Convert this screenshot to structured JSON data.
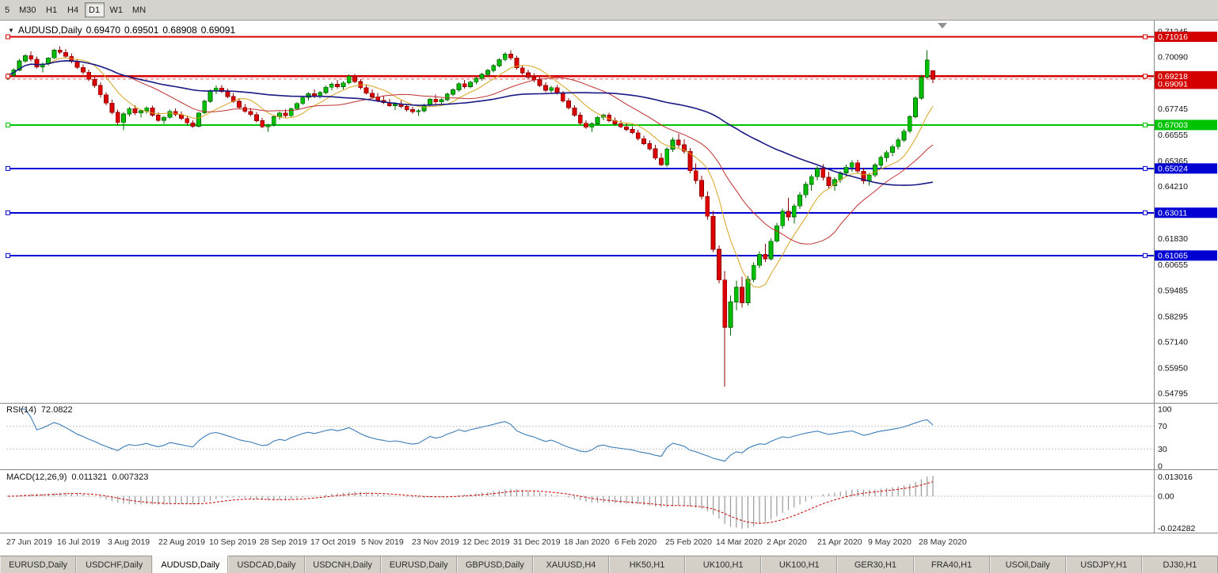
{
  "toolbar": {
    "buttons": [
      {
        "label": "5"
      },
      {
        "label": "M30"
      },
      {
        "label": "H1"
      },
      {
        "label": "H4"
      },
      {
        "label": "D1"
      },
      {
        "label": "W1"
      },
      {
        "label": "MN"
      }
    ],
    "active": "D1"
  },
  "chart": {
    "symbol": "AUDUSD,Daily",
    "ohlc": {
      "open": "0.69470",
      "high": "0.69501",
      "low": "0.68908",
      "close": "0.69091"
    },
    "price_range": {
      "max": 0.715,
      "min": 0.544
    },
    "price_axis_labels": [
      "0.71245",
      "0.70090",
      "0.68935",
      "0.67745",
      "0.66555",
      "0.65365",
      "0.64210",
      "0.63020",
      "0.61830",
      "0.60655",
      "0.59485",
      "0.58295",
      "0.57140",
      "0.55950",
      "0.54795"
    ],
    "hlines": [
      {
        "price": 0.71016,
        "label": "0.71016",
        "color": "#d40000",
        "width": 2
      },
      {
        "price": 0.69218,
        "label": "0.69218",
        "color": "#d40000",
        "width": 2.5
      },
      {
        "price": 0.67003,
        "label": "0.67003",
        "color": "#00c400",
        "width": 2
      },
      {
        "price": 0.65024,
        "label": "0.65024",
        "color": "#0000d2",
        "width": 2
      },
      {
        "price": 0.63011,
        "label": "0.63011",
        "color": "#0000d2",
        "width": 2
      },
      {
        "price": 0.61065,
        "label": "0.61065",
        "color": "#0000d2",
        "width": 2
      }
    ],
    "current_price": {
      "value": 0.69091,
      "label": "0.69091",
      "color": "#d40000"
    },
    "candle_colors": {
      "up_fill": "#00be00",
      "up_border": "#006400",
      "down_fill": "#dc0000",
      "down_border": "#8b0000"
    },
    "moving_averages": [
      {
        "period": 8,
        "color": "#d8a520",
        "width": 1
      },
      {
        "period": 20,
        "color": "#c03030",
        "width": 1
      },
      {
        "period": 55,
        "color": "#1a1a86",
        "width": 1.6
      }
    ],
    "dates": [
      "27 Jun 2019",
      "16 Jul 2019",
      "3 Aug 2019",
      "22 Aug 2019",
      "10 Sep 2019",
      "28 Sep 2019",
      "17 Oct 2019",
      "5 Nov 2019",
      "23 Nov 2019",
      "12 Dec 2019",
      "31 Dec 2019",
      "18 Jan 2020",
      "6 Feb 2020",
      "25 Feb 2020",
      "14 Mar 2020",
      "2 Apr 2020",
      "21 Apr 2020",
      "9 May 2020",
      "28 May 2020"
    ],
    "candles": [
      [
        0.692,
        0.6935,
        0.6905,
        0.6927
      ],
      [
        0.6927,
        0.6958,
        0.692,
        0.695
      ],
      [
        0.695,
        0.7,
        0.6945,
        0.6992
      ],
      [
        0.6992,
        0.7022,
        0.6985,
        0.7015
      ],
      [
        0.7015,
        0.7035,
        0.699,
        0.7
      ],
      [
        0.7,
        0.7012,
        0.6958,
        0.6965
      ],
      [
        0.6965,
        0.6985,
        0.694,
        0.6978
      ],
      [
        0.6978,
        0.701,
        0.697,
        0.7005
      ],
      [
        0.7005,
        0.7048,
        0.7,
        0.704
      ],
      [
        0.704,
        0.7058,
        0.7022,
        0.703
      ],
      [
        0.703,
        0.7045,
        0.7005,
        0.7012
      ],
      [
        0.7012,
        0.7025,
        0.698,
        0.699
      ],
      [
        0.699,
        0.7,
        0.6955,
        0.6962
      ],
      [
        0.6962,
        0.6975,
        0.693,
        0.694
      ],
      [
        0.694,
        0.6952,
        0.69,
        0.6908
      ],
      [
        0.6908,
        0.692,
        0.687,
        0.688
      ],
      [
        0.688,
        0.6895,
        0.6825,
        0.6838
      ],
      [
        0.6838,
        0.685,
        0.679,
        0.68
      ],
      [
        0.68,
        0.6815,
        0.6748,
        0.6758
      ],
      [
        0.6758,
        0.677,
        0.67,
        0.6712
      ],
      [
        0.6712,
        0.676,
        0.6677,
        0.675
      ],
      [
        0.675,
        0.6782,
        0.674,
        0.6775
      ],
      [
        0.6775,
        0.679,
        0.6745,
        0.6755
      ],
      [
        0.6755,
        0.677,
        0.6735,
        0.6765
      ],
      [
        0.6765,
        0.6785,
        0.6752,
        0.6778
      ],
      [
        0.6778,
        0.6788,
        0.6738,
        0.6745
      ],
      [
        0.6745,
        0.6758,
        0.6715,
        0.6722
      ],
      [
        0.6722,
        0.6742,
        0.6705,
        0.6735
      ],
      [
        0.6735,
        0.677,
        0.6728,
        0.6762
      ],
      [
        0.6762,
        0.6775,
        0.674,
        0.6748
      ],
      [
        0.6748,
        0.6762,
        0.6722,
        0.673
      ],
      [
        0.673,
        0.674,
        0.67,
        0.671
      ],
      [
        0.671,
        0.6722,
        0.6688,
        0.6695
      ],
      [
        0.6695,
        0.676,
        0.669,
        0.6755
      ],
      [
        0.6755,
        0.6815,
        0.675,
        0.6808
      ],
      [
        0.6808,
        0.6862,
        0.68,
        0.6855
      ],
      [
        0.6855,
        0.688,
        0.684,
        0.6868
      ],
      [
        0.6868,
        0.6882,
        0.6845,
        0.6852
      ],
      [
        0.6852,
        0.6865,
        0.6822,
        0.683
      ],
      [
        0.683,
        0.6845,
        0.68,
        0.6808
      ],
      [
        0.6808,
        0.6822,
        0.6772,
        0.678
      ],
      [
        0.678,
        0.6795,
        0.6755,
        0.6762
      ],
      [
        0.6762,
        0.6778,
        0.674,
        0.6748
      ],
      [
        0.6748,
        0.676,
        0.6712,
        0.672
      ],
      [
        0.672,
        0.6732,
        0.6685,
        0.6692
      ],
      [
        0.6692,
        0.6705,
        0.667,
        0.67
      ],
      [
        0.67,
        0.6745,
        0.6692,
        0.6738
      ],
      [
        0.6738,
        0.6762,
        0.6725,
        0.6755
      ],
      [
        0.6755,
        0.6772,
        0.6735,
        0.6742
      ],
      [
        0.6742,
        0.678,
        0.6738,
        0.6775
      ],
      [
        0.6775,
        0.6805,
        0.6768,
        0.6798
      ],
      [
        0.6798,
        0.6832,
        0.6792,
        0.6825
      ],
      [
        0.6825,
        0.685,
        0.6812,
        0.6842
      ],
      [
        0.6842,
        0.6862,
        0.6822,
        0.683
      ],
      [
        0.683,
        0.6855,
        0.682,
        0.6848
      ],
      [
        0.6848,
        0.688,
        0.684,
        0.6872
      ],
      [
        0.6872,
        0.6895,
        0.6858,
        0.6885
      ],
      [
        0.6885,
        0.6905,
        0.6865,
        0.6875
      ],
      [
        0.6875,
        0.69,
        0.6862,
        0.6892
      ],
      [
        0.6892,
        0.693,
        0.6885,
        0.6922
      ],
      [
        0.6922,
        0.6932,
        0.689,
        0.6898
      ],
      [
        0.6898,
        0.6908,
        0.6862,
        0.687
      ],
      [
        0.687,
        0.6885,
        0.6838,
        0.6845
      ],
      [
        0.6845,
        0.6862,
        0.682,
        0.6828
      ],
      [
        0.6828,
        0.6845,
        0.6805,
        0.6812
      ],
      [
        0.6812,
        0.6832,
        0.6795,
        0.6802
      ],
      [
        0.6802,
        0.6818,
        0.6782,
        0.6788
      ],
      [
        0.6788,
        0.6805,
        0.6768,
        0.6795
      ],
      [
        0.6795,
        0.6812,
        0.6778,
        0.6785
      ],
      [
        0.6785,
        0.6795,
        0.6762,
        0.677
      ],
      [
        0.677,
        0.6782,
        0.6752,
        0.676
      ],
      [
        0.676,
        0.6772,
        0.6742,
        0.6765
      ],
      [
        0.6765,
        0.6798,
        0.6758,
        0.679
      ],
      [
        0.679,
        0.6825,
        0.6782,
        0.6818
      ],
      [
        0.6818,
        0.6838,
        0.6795,
        0.6805
      ],
      [
        0.6805,
        0.6822,
        0.6788,
        0.6815
      ],
      [
        0.6815,
        0.6848,
        0.6808,
        0.684
      ],
      [
        0.684,
        0.6868,
        0.6832,
        0.686
      ],
      [
        0.686,
        0.6895,
        0.6852,
        0.6888
      ],
      [
        0.6888,
        0.6905,
        0.6865,
        0.6875
      ],
      [
        0.6875,
        0.6902,
        0.6868,
        0.6895
      ],
      [
        0.6895,
        0.692,
        0.6885,
        0.6912
      ],
      [
        0.6912,
        0.6938,
        0.6902,
        0.693
      ],
      [
        0.693,
        0.6955,
        0.692,
        0.6948
      ],
      [
        0.6948,
        0.6978,
        0.694,
        0.697
      ],
      [
        0.697,
        0.7005,
        0.6962,
        0.6998
      ],
      [
        0.6998,
        0.7032,
        0.699,
        0.7022
      ],
      [
        0.7022,
        0.704,
        0.6995,
        0.7005
      ],
      [
        0.7005,
        0.7015,
        0.6952,
        0.696
      ],
      [
        0.696,
        0.6972,
        0.6928,
        0.6938
      ],
      [
        0.6938,
        0.6952,
        0.6908,
        0.6918
      ],
      [
        0.6918,
        0.6935,
        0.6895,
        0.6905
      ],
      [
        0.6905,
        0.692,
        0.6872,
        0.688
      ],
      [
        0.688,
        0.6895,
        0.685,
        0.6858
      ],
      [
        0.6858,
        0.6878,
        0.6842,
        0.687
      ],
      [
        0.687,
        0.6882,
        0.6838,
        0.6845
      ],
      [
        0.6845,
        0.6855,
        0.6802,
        0.681
      ],
      [
        0.681,
        0.6822,
        0.677,
        0.6778
      ],
      [
        0.6778,
        0.679,
        0.6738,
        0.6745
      ],
      [
        0.6745,
        0.6758,
        0.67,
        0.6708
      ],
      [
        0.6708,
        0.6722,
        0.6682,
        0.669
      ],
      [
        0.669,
        0.6712,
        0.667,
        0.6705
      ],
      [
        0.6705,
        0.6742,
        0.6698,
        0.6735
      ],
      [
        0.6735,
        0.6752,
        0.6722,
        0.6745
      ],
      [
        0.6745,
        0.6755,
        0.6712,
        0.672
      ],
      [
        0.672,
        0.6735,
        0.6698,
        0.6705
      ],
      [
        0.6705,
        0.6722,
        0.6685,
        0.6692
      ],
      [
        0.6692,
        0.6708,
        0.6672,
        0.668
      ],
      [
        0.668,
        0.6695,
        0.6658,
        0.6665
      ],
      [
        0.6665,
        0.6678,
        0.663,
        0.6638
      ],
      [
        0.6638,
        0.6652,
        0.6608,
        0.6615
      ],
      [
        0.6615,
        0.663,
        0.6585,
        0.6592
      ],
      [
        0.6592,
        0.661,
        0.6542,
        0.655
      ],
      [
        0.655,
        0.6572,
        0.6512,
        0.652
      ],
      [
        0.652,
        0.66,
        0.651,
        0.659
      ],
      [
        0.659,
        0.6645,
        0.6578,
        0.6632
      ],
      [
        0.6632,
        0.666,
        0.6598,
        0.661
      ],
      [
        0.661,
        0.6635,
        0.657,
        0.658
      ],
      [
        0.658,
        0.6595,
        0.648,
        0.6492
      ],
      [
        0.6492,
        0.6525,
        0.6432,
        0.6448
      ],
      [
        0.6448,
        0.647,
        0.6362,
        0.6375
      ],
      [
        0.6375,
        0.6398,
        0.627,
        0.6285
      ],
      [
        0.6285,
        0.631,
        0.6122,
        0.6135
      ],
      [
        0.6135,
        0.6152,
        0.598,
        0.5995
      ],
      [
        0.5995,
        0.6035,
        0.551,
        0.578
      ],
      [
        0.578,
        0.5925,
        0.5742,
        0.5895
      ],
      [
        0.5895,
        0.5992,
        0.5858,
        0.5962
      ],
      [
        0.5962,
        0.601,
        0.587,
        0.5892
      ],
      [
        0.5892,
        0.6015,
        0.588,
        0.5998
      ],
      [
        0.5998,
        0.6075,
        0.5985,
        0.6062
      ],
      [
        0.6062,
        0.6125,
        0.6048,
        0.6112
      ],
      [
        0.6112,
        0.616,
        0.6078,
        0.6092
      ],
      [
        0.6092,
        0.6185,
        0.6085,
        0.6172
      ],
      [
        0.6172,
        0.6255,
        0.6165,
        0.6242
      ],
      [
        0.6242,
        0.632,
        0.6228,
        0.6308
      ],
      [
        0.6308,
        0.6368,
        0.6265,
        0.6282
      ],
      [
        0.6282,
        0.6342,
        0.6252,
        0.6332
      ],
      [
        0.6332,
        0.6395,
        0.6318,
        0.6382
      ],
      [
        0.6382,
        0.6442,
        0.6368,
        0.643
      ],
      [
        0.643,
        0.6475,
        0.6402,
        0.6465
      ],
      [
        0.6465,
        0.6512,
        0.6448,
        0.6502
      ],
      [
        0.6502,
        0.6522,
        0.6448,
        0.6462
      ],
      [
        0.6462,
        0.6488,
        0.6412,
        0.6425
      ],
      [
        0.6425,
        0.6462,
        0.6402,
        0.6452
      ],
      [
        0.6452,
        0.6492,
        0.6438,
        0.6482
      ],
      [
        0.6482,
        0.652,
        0.6465,
        0.6508
      ],
      [
        0.6508,
        0.654,
        0.6488,
        0.6528
      ],
      [
        0.6528,
        0.6542,
        0.6478,
        0.649
      ],
      [
        0.649,
        0.6505,
        0.6432,
        0.6445
      ],
      [
        0.6445,
        0.6482,
        0.6425,
        0.6472
      ],
      [
        0.6472,
        0.6528,
        0.6462,
        0.6518
      ],
      [
        0.6518,
        0.6562,
        0.6505,
        0.6552
      ],
      [
        0.6552,
        0.6585,
        0.6532,
        0.6575
      ],
      [
        0.6575,
        0.6612,
        0.6558,
        0.6602
      ],
      [
        0.6602,
        0.6642,
        0.6588,
        0.6632
      ],
      [
        0.6632,
        0.6682,
        0.6622,
        0.6672
      ],
      [
        0.6672,
        0.6745,
        0.6662,
        0.6738
      ],
      [
        0.6738,
        0.6832,
        0.673,
        0.6822
      ],
      [
        0.6822,
        0.6928,
        0.6815,
        0.6918
      ],
      [
        0.6918,
        0.704,
        0.691,
        0.6995
      ],
      [
        0.6947,
        0.69501,
        0.68908,
        0.69091
      ]
    ]
  },
  "rsi": {
    "title": "RSI(14)",
    "value": "72.0822",
    "levels": [
      "100",
      "70",
      "30",
      "0"
    ],
    "line_color": "#3b7cb8"
  },
  "macd": {
    "title": "MACD(12,26,9)",
    "value_main": "0.011321",
    "value_signal": "0.007323",
    "labels": {
      "max": "0.013016",
      "zero": "0.00",
      "min": "-0.024282"
    },
    "histogram_color": "#9a9a9a",
    "signal_color": "#cc0000"
  },
  "tabs": {
    "active_index": 2,
    "items": [
      {
        "label": "EURUSD,Daily"
      },
      {
        "label": "USDCHF,Daily"
      },
      {
        "label": "AUDUSD,Daily"
      },
      {
        "label": "USDCAD,Daily"
      },
      {
        "label": "USDCNH,Daily"
      },
      {
        "label": "EURUSD,Daily"
      },
      {
        "label": "GBPUSD,Daily"
      },
      {
        "label": "XAUUSD,H4"
      },
      {
        "label": "HK50,H1"
      },
      {
        "label": "UK100,H1"
      },
      {
        "label": "UK100,H1"
      },
      {
        "label": "GER30,H1"
      },
      {
        "label": "FRA40,H1"
      },
      {
        "label": "USOil,Daily"
      },
      {
        "label": "USDJPY,H1"
      },
      {
        "label": "DJ30,H1"
      }
    ]
  }
}
